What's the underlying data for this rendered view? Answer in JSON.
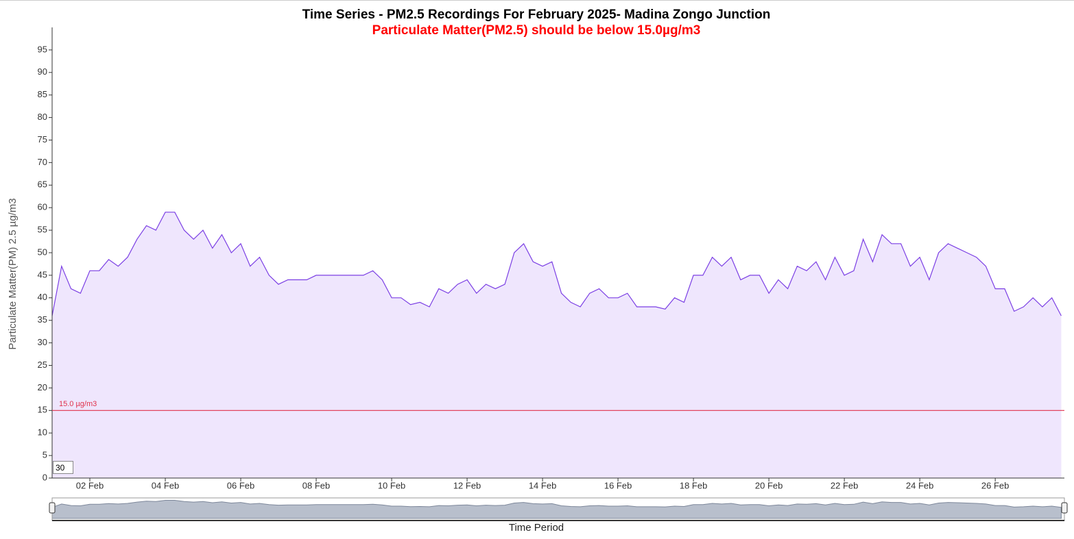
{
  "chart_data": {
    "type": "area",
    "title": "Time Series - PM2.5 Recordings For February 2025- Madina Zongo Junction",
    "subtitle": "Particulate Matter(PM2.5) should be below 15.0µg/m3",
    "y_label": "Particulate Matter(PM) 2.5 µg/m3",
    "x_label": "Time Period",
    "range_input": "30",
    "threshold": {
      "value": 15,
      "label": "15.0 µg/m3",
      "color": "#e0314b"
    },
    "series": [
      {
        "name": "PM2.5",
        "color": "#7b3fe4",
        "fill": "#efe6fd",
        "x": [
          "2025-02-01T00:00",
          "2025-02-01T06:00",
          "2025-02-01T12:00",
          "2025-02-01T18:00",
          "2025-02-02T00:00",
          "2025-02-02T06:00",
          "2025-02-02T12:00",
          "2025-02-02T18:00",
          "2025-02-03T00:00",
          "2025-02-03T06:00",
          "2025-02-03T12:00",
          "2025-02-03T18:00",
          "2025-02-04T00:00",
          "2025-02-04T06:00",
          "2025-02-04T12:00",
          "2025-02-04T18:00",
          "2025-02-05T00:00",
          "2025-02-05T06:00",
          "2025-02-05T12:00",
          "2025-02-05T18:00",
          "2025-02-06T00:00",
          "2025-02-06T06:00",
          "2025-02-06T12:00",
          "2025-02-06T18:00",
          "2025-02-07T00:00",
          "2025-02-07T06:00",
          "2025-02-07T12:00",
          "2025-02-07T18:00",
          "2025-02-08T00:00",
          "2025-02-08T06:00",
          "2025-02-08T12:00",
          "2025-02-08T18:00",
          "2025-02-09T00:00",
          "2025-02-09T06:00",
          "2025-02-09T12:00",
          "2025-02-09T18:00",
          "2025-02-10T00:00",
          "2025-02-10T06:00",
          "2025-02-10T12:00",
          "2025-02-10T18:00",
          "2025-02-11T00:00",
          "2025-02-11T06:00",
          "2025-02-11T12:00",
          "2025-02-11T18:00",
          "2025-02-12T00:00",
          "2025-02-12T06:00",
          "2025-02-12T12:00",
          "2025-02-12T18:00",
          "2025-02-13T00:00",
          "2025-02-13T06:00",
          "2025-02-13T12:00",
          "2025-02-13T18:00",
          "2025-02-14T00:00",
          "2025-02-14T06:00",
          "2025-02-14T12:00",
          "2025-02-14T18:00",
          "2025-02-15T00:00",
          "2025-02-15T06:00",
          "2025-02-15T12:00",
          "2025-02-15T18:00",
          "2025-02-16T00:00",
          "2025-02-16T06:00",
          "2025-02-16T12:00",
          "2025-02-16T18:00",
          "2025-02-17T00:00",
          "2025-02-17T06:00",
          "2025-02-17T12:00",
          "2025-02-17T18:00",
          "2025-02-18T00:00",
          "2025-02-18T06:00",
          "2025-02-18T12:00",
          "2025-02-18T18:00",
          "2025-02-19T00:00",
          "2025-02-19T06:00",
          "2025-02-19T12:00",
          "2025-02-19T18:00",
          "2025-02-20T00:00",
          "2025-02-20T06:00",
          "2025-02-20T12:00",
          "2025-02-20T18:00",
          "2025-02-21T00:00",
          "2025-02-21T06:00",
          "2025-02-21T12:00",
          "2025-02-21T18:00",
          "2025-02-22T00:00",
          "2025-02-22T06:00",
          "2025-02-22T12:00",
          "2025-02-22T18:00",
          "2025-02-23T00:00",
          "2025-02-23T06:00",
          "2025-02-23T12:00",
          "2025-02-23T18:00",
          "2025-02-24T00:00",
          "2025-02-24T06:00",
          "2025-02-24T12:00",
          "2025-02-24T18:00",
          "2025-02-25T00:00",
          "2025-02-25T06:00",
          "2025-02-25T12:00",
          "2025-02-25T18:00",
          "2025-02-26T00:00",
          "2025-02-26T06:00",
          "2025-02-26T12:00",
          "2025-02-26T18:00",
          "2025-02-27T00:00",
          "2025-02-27T06:00",
          "2025-02-27T12:00",
          "2025-02-27T18:00"
        ],
        "values": [
          36,
          47,
          42,
          41,
          46,
          46,
          48.5,
          47,
          49,
          53,
          56,
          55,
          59,
          59,
          55,
          53,
          55,
          51,
          54,
          50,
          52,
          47,
          49,
          45,
          43,
          44,
          44,
          44,
          45,
          45,
          45,
          45,
          45,
          45,
          46,
          44,
          40,
          40,
          38.5,
          39,
          38,
          42,
          41,
          43,
          44,
          41,
          43,
          42,
          43,
          50,
          52,
          48,
          47,
          48,
          41,
          39,
          38,
          41,
          42,
          40,
          40,
          41,
          38,
          38,
          38,
          37.5,
          40,
          39,
          45,
          45,
          49,
          47,
          49,
          44,
          45,
          45,
          41,
          44,
          42,
          47,
          46,
          48,
          44,
          49,
          45,
          46,
          53,
          48,
          54,
          52,
          52,
          47,
          49,
          44,
          50,
          52,
          51,
          50,
          49,
          47,
          42,
          42,
          37,
          38,
          40,
          38,
          40,
          36
        ]
      }
    ],
    "xlim": [
      "2025-02-01T00:00",
      "2025-02-27T20:00"
    ],
    "xticks": [
      {
        "value": "2025-02-02T00:00",
        "label": "02 Feb"
      },
      {
        "value": "2025-02-04T00:00",
        "label": "04 Feb"
      },
      {
        "value": "2025-02-06T00:00",
        "label": "06 Feb"
      },
      {
        "value": "2025-02-08T00:00",
        "label": "08 Feb"
      },
      {
        "value": "2025-02-10T00:00",
        "label": "10 Feb"
      },
      {
        "value": "2025-02-12T00:00",
        "label": "12 Feb"
      },
      {
        "value": "2025-02-14T00:00",
        "label": "14 Feb"
      },
      {
        "value": "2025-02-16T00:00",
        "label": "16 Feb"
      },
      {
        "value": "2025-02-18T00:00",
        "label": "18 Feb"
      },
      {
        "value": "2025-02-20T00:00",
        "label": "20 Feb"
      },
      {
        "value": "2025-02-22T00:00",
        "label": "22 Feb"
      },
      {
        "value": "2025-02-24T00:00",
        "label": "24 Feb"
      },
      {
        "value": "2025-02-26T00:00",
        "label": "26 Feb"
      }
    ],
    "ylim": [
      0,
      100
    ],
    "yticks": [
      0,
      5,
      10,
      15,
      20,
      25,
      30,
      35,
      40,
      45,
      50,
      55,
      60,
      65,
      70,
      75,
      80,
      85,
      90,
      95
    ],
    "grid": false
  }
}
